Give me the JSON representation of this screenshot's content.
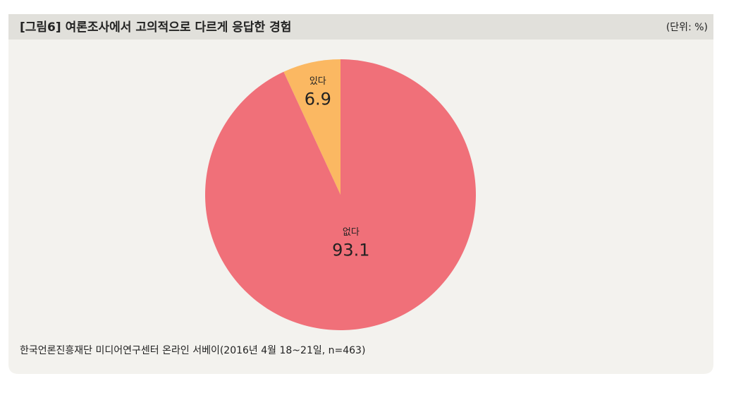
{
  "chart_data": {
    "type": "pie",
    "title": "[그림6]  여론조사에서 고의적으로 다르게 응답한 경험",
    "unit": "(단위: %)",
    "categories": [
      "있다",
      "없다"
    ],
    "values": [
      6.9,
      93.1
    ],
    "colors": [
      "#fbb862",
      "#f07079"
    ],
    "source": "한국언론진흥재단 미디어연구센터 온라인 서베이(2016년 4월 18~21일, n=463)"
  }
}
